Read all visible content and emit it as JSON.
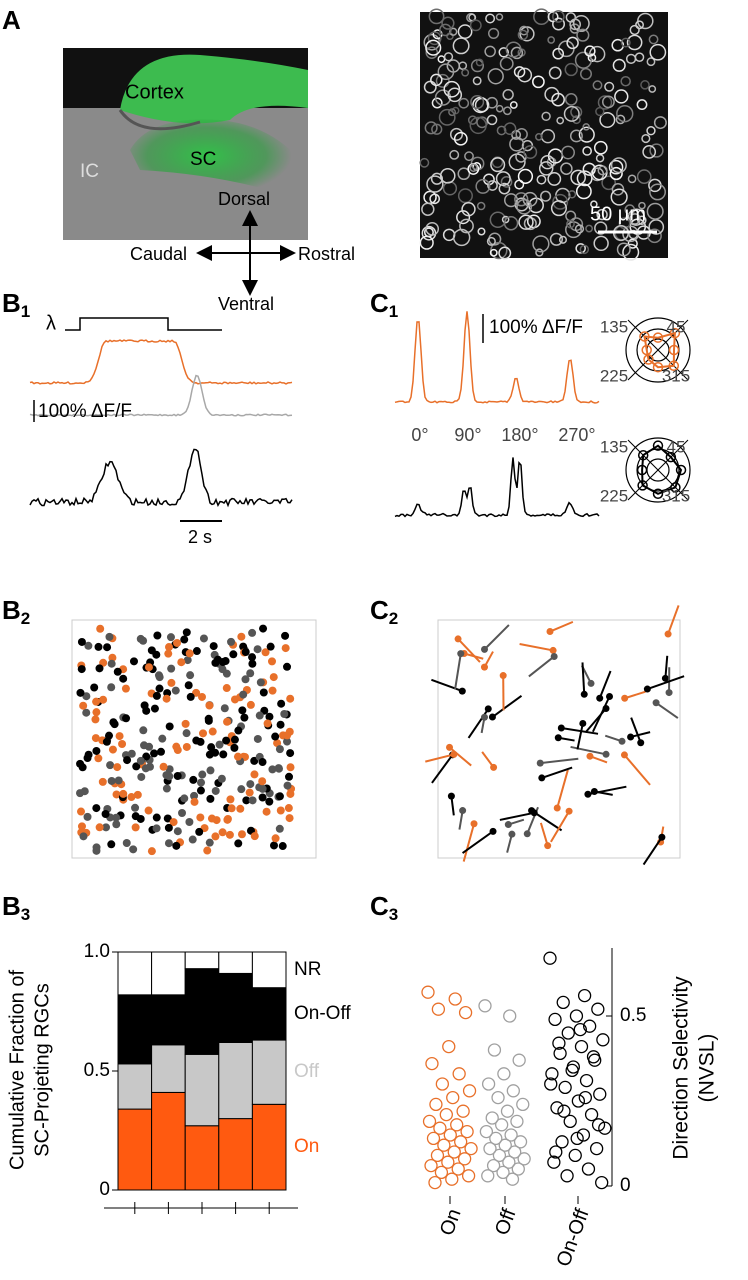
{
  "panel_labels": [
    {
      "letter": "A"
    },
    {
      "letter": "B",
      "sub": "1"
    },
    {
      "letter": "C",
      "sub": "1"
    },
    {
      "letter": "B",
      "sub": "2"
    },
    {
      "letter": "C",
      "sub": "2"
    },
    {
      "letter": "B",
      "sub": "3"
    },
    {
      "letter": "C",
      "sub": "3"
    }
  ],
  "A": {
    "labels": {
      "cortex": "Cortex",
      "sc": "SC",
      "ic": "IC",
      "dorsal": "Dorsal",
      "caudal": "Caudal",
      "rostral": "Rostral",
      "ventral": "Ventral"
    },
    "scale_bar": "50 μm"
  },
  "B1": {
    "stimulus": "λ",
    "scale": "100% ΔF/F",
    "time_scale": "2 s"
  },
  "C1": {
    "scale": "100% ΔF/F",
    "directions": [
      "0°",
      "90°",
      "180°",
      "270°"
    ],
    "polar_labels": [
      "135",
      "45",
      "225",
      "315"
    ]
  },
  "chart_data": [
    {
      "type": "stacked_bar",
      "ylabel": [
        "Cumulative Fraction of",
        "SC-Projeting RGCs"
      ],
      "categories": [
        null,
        null,
        null,
        null,
        null
      ],
      "series": [
        {
          "name": "On",
          "color": "#ff5a10",
          "label_color": "#ff5a10",
          "values": [
            0.34,
            0.41,
            0.27,
            0.3,
            0.36
          ]
        },
        {
          "name": "Off",
          "color": "#c8c8c8",
          "label_color": "#c8c8c8",
          "values": [
            0.19,
            0.2,
            0.3,
            0.32,
            0.27
          ]
        },
        {
          "name": "On-Off",
          "color": "#000000",
          "label_color": "#000000",
          "values": [
            0.29,
            0.21,
            0.36,
            0.29,
            0.22
          ]
        },
        {
          "name": "NR",
          "color": "#ffffff",
          "label_color": "#000000",
          "values": [
            0.18,
            0.18,
            0.07,
            0.09,
            0.15
          ]
        }
      ],
      "ylim": [
        0,
        1
      ],
      "yticks": [
        0,
        0.5,
        {
          "value": 1,
          "label": "1.0"
        }
      ]
    },
    {
      "type": "strip",
      "ylabel": [
        "Direction Selectivity",
        "(NVSL)"
      ],
      "categories": [
        "On",
        "Off",
        "On-Off"
      ],
      "series": [
        {
          "color": "#e8702a",
          "values": [
            0.57,
            0.55,
            0.52,
            0.51,
            0.41,
            0.36,
            0.33,
            0.3,
            0.28,
            0.26,
            0.24,
            0.22,
            0.21,
            0.19,
            0.18,
            0.17,
            0.16,
            0.15,
            0.14,
            0.13,
            0.12,
            0.11,
            0.1,
            0.09,
            0.08,
            0.07,
            0.06,
            0.05,
            0.04,
            0.03,
            0.02,
            0.01
          ]
        },
        {
          "color": "#a0a0a0",
          "values": [
            0.53,
            0.5,
            0.4,
            0.37,
            0.33,
            0.3,
            0.28,
            0.26,
            0.24,
            0.22,
            0.2,
            0.19,
            0.18,
            0.16,
            0.15,
            0.14,
            0.13,
            0.12,
            0.11,
            0.1,
            0.09,
            0.08,
            0.07,
            0.06,
            0.05,
            0.04,
            0.03,
            0.02
          ]
        },
        {
          "color": "#000000",
          "values": [
            0.67,
            0.56,
            0.54,
            0.52,
            0.5,
            0.49,
            0.47,
            0.45,
            0.43,
            0.41,
            0.39,
            0.37,
            0.35,
            0.33,
            0.31,
            0.29,
            0.27,
            0.25,
            0.23,
            0.21,
            0.19,
            0.17,
            0.15,
            0.13,
            0.11,
            0.09,
            0.07,
            0.05,
            0.03,
            0.01,
            0.46,
            0.42,
            0.38,
            0.34,
            0.3,
            0.26,
            0.22,
            0.18,
            0.14,
            0.1
          ]
        }
      ],
      "ylim": [
        0,
        0.7
      ],
      "yticks": [
        0,
        0.5
      ]
    }
  ]
}
